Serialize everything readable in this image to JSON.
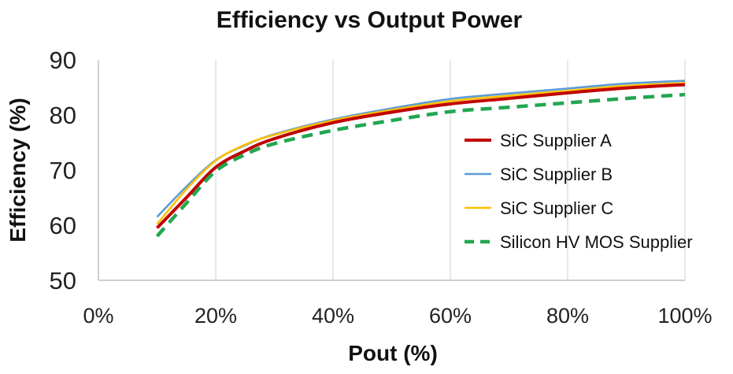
{
  "chart_data": {
    "type": "line",
    "title": "Efficiency vs Output Power",
    "xlabel": "Pout (%)",
    "ylabel": "Efficiency (%)",
    "xlim": [
      0,
      100
    ],
    "ylim": [
      50,
      90
    ],
    "x_ticks": [
      "0%",
      "20%",
      "40%",
      "60%",
      "80%",
      "100%"
    ],
    "y_ticks": [
      "50",
      "60",
      "70",
      "80",
      "90"
    ],
    "grid": "vertical",
    "legend_position": "right",
    "series": [
      {
        "name": "SiC Supplier A",
        "color": "#c00000",
        "dash": "solid",
        "x": [
          10,
          15,
          20,
          25,
          30,
          40,
          50,
          60,
          70,
          80,
          90,
          100
        ],
        "values": [
          59.5,
          65.0,
          70.5,
          73.5,
          75.7,
          78.6,
          80.5,
          82.0,
          83.0,
          84.0,
          84.9,
          85.5
        ]
      },
      {
        "name": "SiC Supplier B",
        "color": "#5b9bd5",
        "dash": "solid",
        "x": [
          10,
          15,
          20,
          25,
          30,
          40,
          50,
          60,
          70,
          80,
          90,
          100
        ],
        "values": [
          61.5,
          67.0,
          71.8,
          74.5,
          76.5,
          79.2,
          81.2,
          82.9,
          83.9,
          84.8,
          85.7,
          86.2
        ]
      },
      {
        "name": "SiC Supplier C",
        "color": "#ffc000",
        "dash": "solid",
        "x": [
          10,
          15,
          20,
          25,
          30,
          40,
          50,
          60,
          70,
          80,
          90,
          100
        ],
        "values": [
          60.2,
          66.5,
          71.7,
          74.6,
          76.4,
          79.0,
          80.9,
          82.5,
          83.5,
          84.4,
          85.3,
          85.8
        ]
      },
      {
        "name": "Silicon HV MOS Supplier",
        "color": "#22a650",
        "dash": "dashed",
        "x": [
          10,
          15,
          20,
          25,
          30,
          40,
          50,
          60,
          70,
          80,
          90,
          100
        ],
        "values": [
          58.0,
          64.0,
          69.8,
          72.8,
          74.8,
          77.2,
          79.0,
          80.6,
          81.4,
          82.2,
          83.0,
          83.7
        ]
      }
    ]
  }
}
